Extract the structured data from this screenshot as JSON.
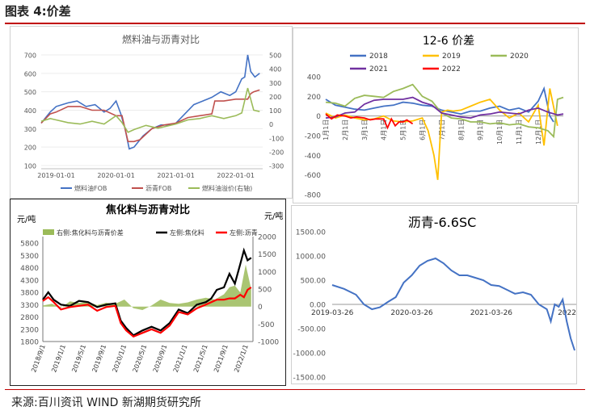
{
  "header": {
    "title": "图表 4:价差"
  },
  "footer": {
    "source": "来源:百川资讯 WIND 新湖期货研究所"
  },
  "colors": {
    "accent": "#c00000",
    "blue": "#4472c4",
    "orange": "#ffc000",
    "green": "#9bbb59",
    "purple": "#7030a0",
    "red": "#c0504d",
    "black": "#000000"
  },
  "chart_data": [
    {
      "type": "line",
      "title": "燃料油与沥青对比",
      "x_ticks": [
        "2019-01-01",
        "2020-01-01",
        "2021-01-01",
        "2022-01-01"
      ],
      "y_left_ticks": [
        "700",
        "600",
        "500",
        "400",
        "300",
        "200",
        "100"
      ],
      "y_right_ticks": [
        "500",
        "400",
        "300",
        "200",
        "100",
        "0",
        "-100",
        "-200",
        "-300"
      ],
      "ylim_left": [
        100,
        700
      ],
      "ylim_right": [
        -300,
        500
      ],
      "legend_position": "bottom",
      "series": [
        {
          "name": "燃料油FOB",
          "axis": "left",
          "color": "#4472c4",
          "x": [
            2018.75,
            2018.9,
            2019.0,
            2019.1,
            2019.2,
            2019.35,
            2019.5,
            2019.65,
            2019.8,
            2019.9,
            2020.0,
            2020.08,
            2020.15,
            2020.22,
            2020.3,
            2020.45,
            2020.6,
            2020.75,
            2020.9,
            2021.0,
            2021.15,
            2021.3,
            2021.45,
            2021.6,
            2021.75,
            2021.9,
            2022.0,
            2022.1,
            2022.15,
            2022.2,
            2022.25,
            2022.32,
            2022.4
          ],
          "y": [
            330,
            390,
            420,
            430,
            440,
            450,
            420,
            430,
            390,
            410,
            450,
            380,
            300,
            190,
            200,
            260,
            300,
            320,
            320,
            330,
            380,
            430,
            450,
            470,
            500,
            480,
            500,
            570,
            580,
            700,
            610,
            580,
            600
          ]
        },
        {
          "name": "沥青FOB",
          "axis": "left",
          "color": "#c0504d",
          "x": [
            2018.75,
            2018.9,
            2019.0,
            2019.2,
            2019.4,
            2019.6,
            2019.8,
            2020.0,
            2020.1,
            2020.2,
            2020.3,
            2020.4,
            2020.6,
            2020.8,
            2021.0,
            2021.2,
            2021.4,
            2021.6,
            2021.65,
            2021.8,
            2022.0,
            2022.2,
            2022.25,
            2022.3,
            2022.4
          ],
          "y": [
            330,
            380,
            390,
            420,
            420,
            400,
            400,
            370,
            370,
            230,
            230,
            240,
            300,
            320,
            330,
            360,
            370,
            380,
            450,
            450,
            460,
            460,
            490,
            500,
            510
          ]
        },
        {
          "name": "燃料油溢价(右轴)",
          "axis": "right",
          "color": "#9bbb59",
          "x": [
            2018.75,
            2018.9,
            2019.0,
            2019.2,
            2019.4,
            2019.6,
            2019.8,
            2020.0,
            2020.1,
            2020.2,
            2020.3,
            2020.5,
            2020.7,
            2021.0,
            2021.2,
            2021.4,
            2021.6,
            2021.8,
            2022.0,
            2022.1,
            2022.2,
            2022.3,
            2022.4
          ],
          "y": [
            20,
            40,
            30,
            10,
            0,
            20,
            0,
            60,
            10,
            -60,
            -40,
            -10,
            -30,
            0,
            30,
            40,
            60,
            40,
            60,
            80,
            260,
            100,
            90
          ]
        }
      ]
    },
    {
      "type": "line",
      "title": "12-6 价差",
      "x_ticks": [
        "1月1日",
        "2月1日",
        "3月1日",
        "4月1日",
        "5月1日",
        "6月1日",
        "7月1日",
        "8月1日",
        "9月1日",
        "10月1日",
        "11月1日",
        "12月1日"
      ],
      "y_ticks": [
        "400",
        "200",
        "0",
        "-200",
        "-400",
        "-600",
        "-800"
      ],
      "ylim": [
        -800,
        400
      ],
      "legend_position": "top",
      "series": [
        {
          "name": "2018",
          "color": "#4472c4",
          "x": [
            0,
            0.5,
            1,
            1.5,
            2,
            2.5,
            3,
            3.5,
            4,
            4.5,
            5,
            5.5,
            6,
            6.5,
            7,
            7.5,
            8,
            8.5,
            9,
            9.5,
            10,
            10.5,
            11,
            11.3,
            11.6,
            11.8
          ],
          "y": [
            170,
            110,
            90,
            70,
            60,
            80,
            100,
            110,
            140,
            130,
            110,
            100,
            60,
            40,
            20,
            50,
            50,
            80,
            100,
            60,
            80,
            40,
            150,
            280,
            0,
            -60
          ]
        },
        {
          "name": "2019",
          "color": "#ffc000",
          "x": [
            0,
            0.5,
            1,
            1.5,
            2,
            2.5,
            3,
            3.5,
            4,
            4.5,
            5,
            5.3,
            5.6,
            5.8,
            6,
            6.3,
            6.6,
            7,
            7.5,
            8,
            8.5,
            9,
            9.5,
            10,
            10.5,
            11,
            11.3,
            11.6,
            12
          ],
          "y": [
            30,
            -20,
            10,
            -20,
            -40,
            -30,
            0,
            -50,
            -60,
            -50,
            -20,
            -150,
            -400,
            -650,
            40,
            60,
            50,
            60,
            100,
            140,
            170,
            60,
            -20,
            30,
            -60,
            110,
            -300,
            280,
            -100
          ]
        },
        {
          "name": "2020",
          "color": "#9bbb59",
          "x": [
            0,
            0.5,
            1,
            1.5,
            2,
            2.5,
            3,
            3.5,
            4,
            4.5,
            5,
            5.5,
            6,
            6.5,
            7,
            7.5,
            8,
            8.5,
            9,
            9.5,
            10,
            10.5,
            11,
            11.5,
            11.8,
            12,
            12.3
          ],
          "y": [
            140,
            130,
            100,
            180,
            210,
            200,
            190,
            250,
            280,
            320,
            200,
            150,
            30,
            -20,
            -30,
            -60,
            -60,
            -80,
            -70,
            -90,
            -80,
            -110,
            -120,
            -150,
            -210,
            170,
            190
          ]
        },
        {
          "name": "2021",
          "color": "#7030a0",
          "x": [
            0,
            0.5,
            1,
            1.5,
            2,
            2.5,
            3,
            3.5,
            4,
            4.5,
            5,
            5.5,
            6,
            6.5,
            7,
            7.5,
            8,
            8.5,
            9,
            9.5,
            10,
            10.5,
            11,
            11.5,
            12,
            12.3
          ],
          "y": [
            -20,
            -10,
            30,
            40,
            120,
            160,
            170,
            170,
            170,
            190,
            140,
            110,
            30,
            10,
            -10,
            -20,
            10,
            20,
            40,
            30,
            20,
            60,
            80,
            40,
            10,
            20
          ]
        },
        {
          "name": "2022",
          "color": "#ff0000",
          "x": [
            0,
            0.3,
            0.6,
            1,
            1.3,
            1.6,
            2,
            2.3,
            2.6,
            3,
            3.2,
            3.4,
            3.6,
            3.8,
            4,
            4.2,
            4.5
          ],
          "y": [
            20,
            -30,
            10,
            0,
            -20,
            -10,
            -20,
            -40,
            -30,
            -30,
            -120,
            -30,
            -100,
            -60,
            -60,
            -40,
            -80
          ]
        }
      ]
    },
    {
      "type": "line",
      "title": "焦化料与沥青对比",
      "ylabel_left": "元/吨",
      "ylabel_right": "元/吨",
      "x_ticks": [
        "2018/9/1",
        "2019/1/1",
        "2019/5/1",
        "2019/9/1",
        "2020/1/1",
        "2020/5/1",
        "2020/9/1",
        "2021/1/1",
        "2021/5/1",
        "2021/9/1",
        "2022/1/1"
      ],
      "y_left_ticks": [
        "5800",
        "5300",
        "4800",
        "4300",
        "3800",
        "3300",
        "2800",
        "2300",
        "1800"
      ],
      "y_right_ticks": [
        "2000",
        "1500",
        "1000",
        "500",
        "0",
        "-500",
        "-1000"
      ],
      "ylim_left": [
        1800,
        6000
      ],
      "ylim_right": [
        -1000,
        2000
      ],
      "legend_position": "top",
      "series": [
        {
          "name": "右侧:焦化料与沥青价差",
          "axis": "right",
          "kind": "area",
          "color": "#9bbb59",
          "x": [
            0,
            0.5,
            1,
            1.5,
            2,
            2.5,
            3,
            3.5,
            4,
            4.5,
            5,
            5.5,
            6,
            6.5,
            7,
            7.5,
            8,
            8.5,
            9,
            9.5,
            10,
            10.3,
            10.6,
            10.9,
            11.2,
            11.5
          ],
          "y": [
            30,
            80,
            -30,
            150,
            100,
            130,
            40,
            110,
            80,
            200,
            -50,
            -100,
            30,
            200,
            100,
            80,
            120,
            200,
            250,
            200,
            350,
            550,
            600,
            400,
            1200,
            500
          ]
        },
        {
          "name": "左侧:焦化料",
          "axis": "left",
          "color": "#000000",
          "x": [
            0,
            0.3,
            0.6,
            1,
            1.5,
            2,
            2.5,
            3,
            3.5,
            4,
            4.3,
            4.6,
            5,
            5.5,
            6,
            6.5,
            7,
            7.5,
            8,
            8.5,
            9,
            9.3,
            9.6,
            10,
            10.3,
            10.6,
            10.9,
            11.1,
            11.3,
            11.5
          ],
          "y": [
            3500,
            3800,
            3500,
            3300,
            3250,
            3450,
            3400,
            3200,
            3300,
            3350,
            2650,
            2350,
            2050,
            2250,
            2400,
            2250,
            2550,
            3100,
            2950,
            3300,
            3400,
            3550,
            3900,
            4000,
            4550,
            4150,
            4950,
            5500,
            5100,
            5200
          ]
        },
        {
          "name": "左侧:沥青",
          "axis": "left",
          "color": "#ff0000",
          "x": [
            0,
            0.3,
            0.6,
            1,
            1.5,
            2,
            2.5,
            3,
            3.5,
            4,
            4.3,
            4.6,
            5,
            5.5,
            6,
            6.5,
            7,
            7.5,
            8,
            8.5,
            9,
            9.3,
            9.6,
            10,
            10.3,
            10.6,
            10.9,
            11.1,
            11.3,
            11.5
          ],
          "y": [
            3450,
            3600,
            3400,
            3100,
            3200,
            3250,
            3300,
            3050,
            3200,
            3250,
            2550,
            2250,
            2000,
            2150,
            2300,
            2150,
            2450,
            3000,
            2900,
            3150,
            3300,
            3400,
            3500,
            3500,
            3550,
            3550,
            3700,
            3600,
            3900,
            4000
          ]
        }
      ]
    },
    {
      "type": "line",
      "title": "沥青-6.6SC",
      "x_ticks": [
        "2019-03-26",
        "2020-03-26",
        "2021-03-26",
        "2022-"
      ],
      "y_ticks": [
        "1500.00",
        "1000.00",
        "500.00",
        "0.00",
        "-500.00",
        "-1000.00",
        "-1500.00"
      ],
      "ylim": [
        -1500,
        1500
      ],
      "series": [
        {
          "name": "沥青-6.6SC",
          "color": "#4472c4",
          "x": [
            2019.2,
            2019.35,
            2019.5,
            2019.6,
            2019.7,
            2019.8,
            2019.9,
            2020.0,
            2020.1,
            2020.2,
            2020.3,
            2020.4,
            2020.5,
            2020.6,
            2020.7,
            2020.8,
            2020.9,
            2021.0,
            2021.1,
            2021.2,
            2021.3,
            2021.4,
            2021.5,
            2021.6,
            2021.7,
            2021.8,
            2021.9,
            2021.95,
            2022.0,
            2022.05,
            2022.1,
            2022.15,
            2022.2,
            2022.25
          ],
          "y": [
            400,
            320,
            200,
            0,
            -100,
            -60,
            50,
            150,
            450,
            600,
            800,
            900,
            950,
            850,
            700,
            600,
            600,
            550,
            500,
            400,
            380,
            300,
            220,
            250,
            200,
            0,
            -100,
            -350,
            0,
            -50,
            100,
            -350,
            -700,
            -950
          ]
        }
      ]
    }
  ]
}
